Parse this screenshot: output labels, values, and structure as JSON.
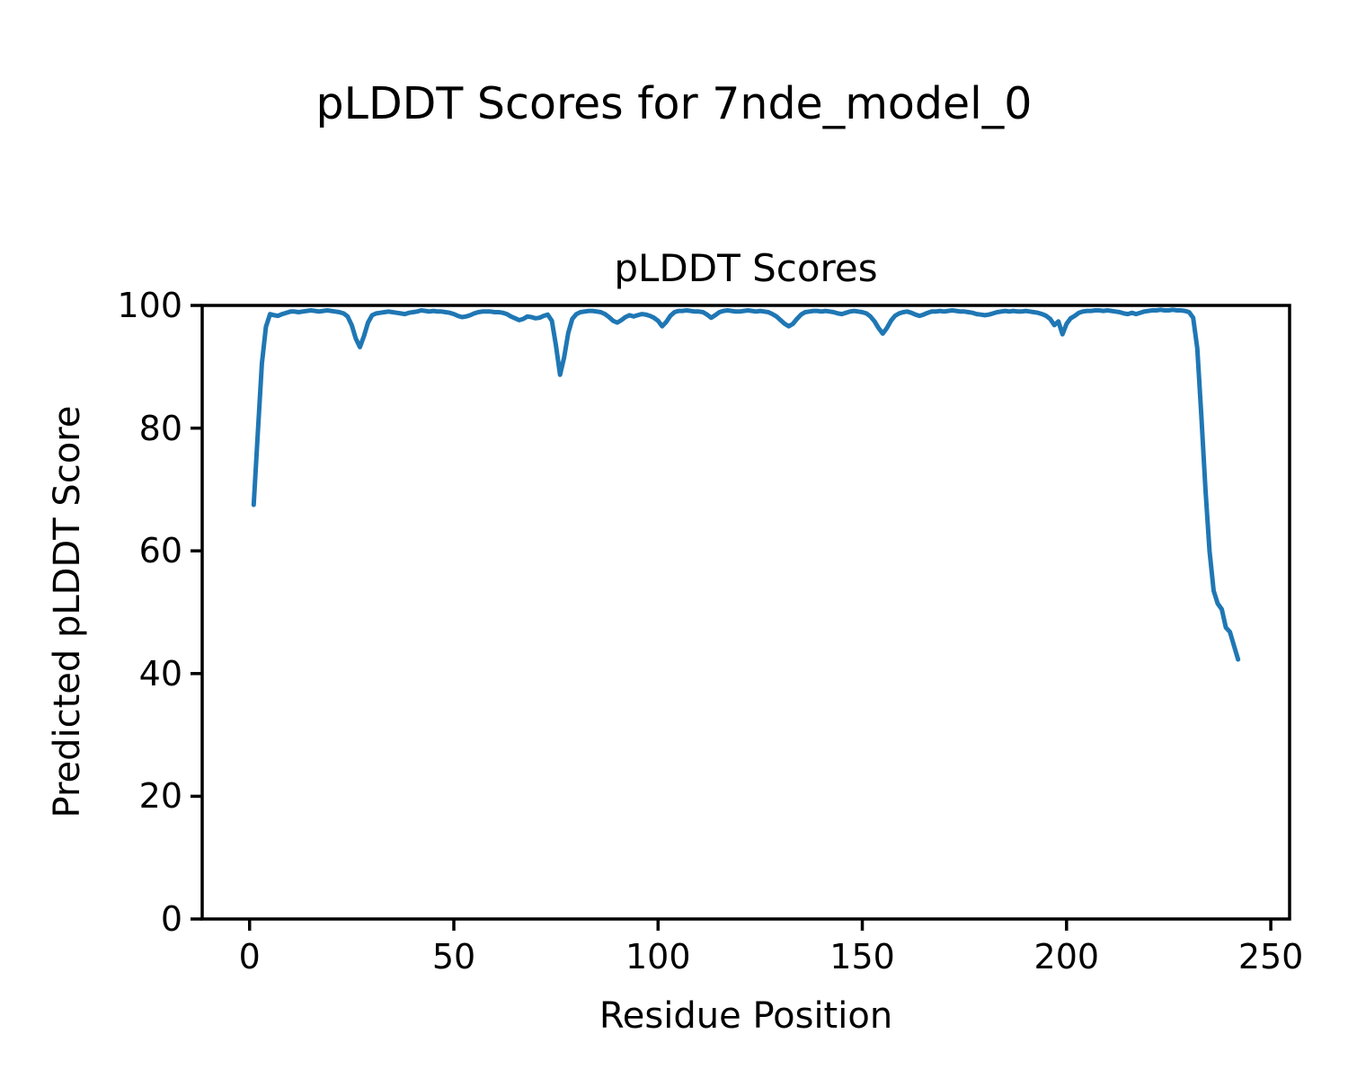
{
  "titles": {
    "figure_title": "pLDDT Scores for 7nde_model_0",
    "axes_title": "pLDDT Scores"
  },
  "axes": {
    "xlabel": "Residue Position",
    "ylabel": "Predicted pLDDT Score",
    "x_tick_values": [
      0,
      50,
      100,
      150,
      200,
      250
    ],
    "x_tick_labels": [
      "0",
      "50",
      "100",
      "150",
      "200",
      "250"
    ],
    "y_tick_values": [
      0,
      20,
      40,
      60,
      80,
      100
    ],
    "y_tick_labels": [
      "0",
      "20",
      "40",
      "60",
      "80",
      "100"
    ]
  },
  "colors": {
    "line": "#1f77b4",
    "axis": "#000000",
    "text": "#000000",
    "background": "#ffffff"
  },
  "chart_data": {
    "type": "line",
    "title": "pLDDT Scores",
    "figure_title": "pLDDT Scores for 7nde_model_0",
    "xlabel": "Residue Position",
    "ylabel": "Predicted pLDDT Score",
    "xlim": [
      -11.6,
      254.6
    ],
    "ylim": [
      0,
      100
    ],
    "grid": false,
    "legend": false,
    "series": [
      {
        "name": "pLDDT",
        "color": "#1f77b4",
        "x_start": 1,
        "x_step": 1,
        "y": [
          67.5,
          79.0,
          90.5,
          96.5,
          98.6,
          98.4,
          98.3,
          98.6,
          98.8,
          99.0,
          99.0,
          98.9,
          99.0,
          99.1,
          99.2,
          99.1,
          99.0,
          99.1,
          99.2,
          99.1,
          99.0,
          98.9,
          98.7,
          98.2,
          96.8,
          94.6,
          93.2,
          95.0,
          97.2,
          98.4,
          98.7,
          98.8,
          98.9,
          99.0,
          98.9,
          98.8,
          98.7,
          98.6,
          98.8,
          98.9,
          99.0,
          99.2,
          99.1,
          99.0,
          99.1,
          99.0,
          99.0,
          98.9,
          98.8,
          98.6,
          98.3,
          98.1,
          98.2,
          98.4,
          98.7,
          98.9,
          99.0,
          99.0,
          99.0,
          98.9,
          98.9,
          98.8,
          98.6,
          98.2,
          97.9,
          97.6,
          97.8,
          98.2,
          98.1,
          97.9,
          98.0,
          98.3,
          98.5,
          97.5,
          93.5,
          88.7,
          91.5,
          95.5,
          97.8,
          98.6,
          98.9,
          99.0,
          99.1,
          99.1,
          99.0,
          98.9,
          98.6,
          98.1,
          97.5,
          97.2,
          97.6,
          98.1,
          98.4,
          98.2,
          98.4,
          98.6,
          98.5,
          98.3,
          98.0,
          97.5,
          96.6,
          97.3,
          98.3,
          98.9,
          99.1,
          99.1,
          99.2,
          99.1,
          99.0,
          99.0,
          98.9,
          98.5,
          98.0,
          98.4,
          98.9,
          99.1,
          99.2,
          99.1,
          99.0,
          99.0,
          99.1,
          99.2,
          99.1,
          99.0,
          99.1,
          99.0,
          98.9,
          98.6,
          98.2,
          97.6,
          97.0,
          96.6,
          97.0,
          97.8,
          98.5,
          98.9,
          99.0,
          99.1,
          99.1,
          99.0,
          99.1,
          99.0,
          98.9,
          98.7,
          98.6,
          98.8,
          99.0,
          99.1,
          99.0,
          98.9,
          98.7,
          98.2,
          97.4,
          96.3,
          95.4,
          96.3,
          97.5,
          98.3,
          98.7,
          98.9,
          99.0,
          98.8,
          98.5,
          98.3,
          98.5,
          98.8,
          99.0,
          99.0,
          99.1,
          99.0,
          99.1,
          99.2,
          99.1,
          99.0,
          99.0,
          98.9,
          98.8,
          98.6,
          98.5,
          98.4,
          98.5,
          98.7,
          98.9,
          99.0,
          99.1,
          99.0,
          99.1,
          99.0,
          99.0,
          99.1,
          99.0,
          98.9,
          98.8,
          98.6,
          98.3,
          97.8,
          96.8,
          97.4,
          95.3,
          97.0,
          97.9,
          98.3,
          98.8,
          99.0,
          99.1,
          99.1,
          99.2,
          99.2,
          99.1,
          99.2,
          99.1,
          99.0,
          98.9,
          98.7,
          98.6,
          98.8,
          98.6,
          98.8,
          99.0,
          99.1,
          99.2,
          99.2,
          99.3,
          99.2,
          99.2,
          99.3,
          99.2,
          99.2,
          99.1,
          98.9,
          98.0,
          93.0,
          82.0,
          70.0,
          60.0,
          53.5,
          51.4,
          50.5,
          47.5,
          46.8,
          44.5,
          42.3
        ]
      }
    ]
  }
}
